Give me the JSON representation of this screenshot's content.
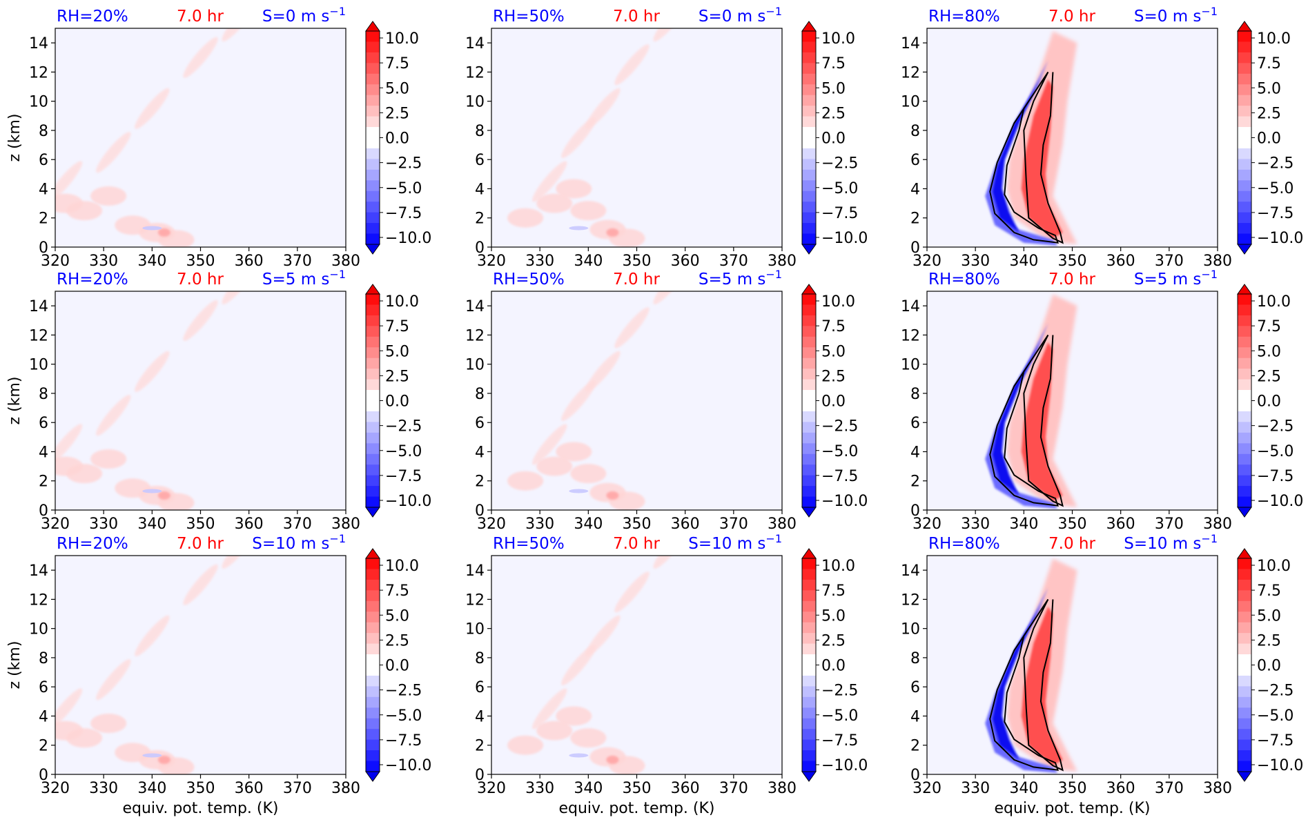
{
  "figure": {
    "colors": {
      "background": "#f4f4ff",
      "positive": "#ff0000",
      "negative": "#0000ff",
      "neutral": "#ffffff",
      "contour": "#000000",
      "rh_label": "#0000ff",
      "time_label": "#ff0000",
      "shear_label": "#0000ff"
    }
  },
  "chart_data": [
    {
      "type": "heatmap",
      "panel_row": 0,
      "panel_col": 0,
      "rh_label": "RH=20%",
      "time_label": "7.0 hr",
      "shear_label": "S=0 m s",
      "shear_exp": "−1",
      "regime": "dry",
      "xlabel": "",
      "ylabel": "z (km)",
      "xlim": [
        320,
        380
      ],
      "ylim": [
        0,
        15
      ],
      "xticks": [
        "320",
        "330",
        "340",
        "350",
        "360",
        "370",
        "380"
      ],
      "yticks": [
        "0",
        "2",
        "4",
        "6",
        "8",
        "10",
        "12",
        "14"
      ],
      "colorbar_ticks": [
        "10.0",
        "7.5",
        "5.0",
        "2.5",
        "0.0",
        "−2.5",
        "−5.0",
        "−7.5",
        "−10.0"
      ],
      "colorbar_range": [
        -10,
        10
      ],
      "colorbar_extend": "both"
    },
    {
      "type": "heatmap",
      "panel_row": 0,
      "panel_col": 1,
      "rh_label": "RH=50%",
      "time_label": "7.0 hr",
      "shear_label": "S=0 m s",
      "shear_exp": "−1",
      "regime": "moist",
      "xlabel": "",
      "ylabel": "",
      "xlim": [
        320,
        380
      ],
      "ylim": [
        0,
        15
      ],
      "xticks": [
        "320",
        "330",
        "340",
        "350",
        "360",
        "370",
        "380"
      ],
      "yticks": [
        "0",
        "2",
        "4",
        "6",
        "8",
        "10",
        "12",
        "14"
      ],
      "colorbar_ticks": [
        "10.0",
        "7.5",
        "5.0",
        "2.5",
        "0.0",
        "−2.5",
        "−5.0",
        "−7.5",
        "−10.0"
      ],
      "colorbar_range": [
        -10,
        10
      ],
      "colorbar_extend": "both"
    },
    {
      "type": "heatmap",
      "panel_row": 0,
      "panel_col": 2,
      "rh_label": "RH=80%",
      "time_label": "7.0 hr",
      "shear_label": "S=0 m s",
      "shear_exp": "−1",
      "regime": "convective",
      "xlabel": "",
      "ylabel": "",
      "xlim": [
        320,
        380
      ],
      "ylim": [
        0,
        15
      ],
      "xticks": [
        "320",
        "330",
        "340",
        "350",
        "360",
        "370",
        "380"
      ],
      "yticks": [
        "0",
        "2",
        "4",
        "6",
        "8",
        "10",
        "12",
        "14"
      ],
      "colorbar_ticks": [
        "10.0",
        "7.5",
        "5.0",
        "2.5",
        "0.0",
        "−2.5",
        "−5.0",
        "−7.5",
        "−10.0"
      ],
      "colorbar_range": [
        -10,
        10
      ],
      "colorbar_extend": "both"
    },
    {
      "type": "heatmap",
      "panel_row": 1,
      "panel_col": 0,
      "rh_label": "RH=20%",
      "time_label": "7.0 hr",
      "shear_label": "S=5 m s",
      "shear_exp": "−1",
      "regime": "dry",
      "xlabel": "",
      "ylabel": "z (km)",
      "xlim": [
        320,
        380
      ],
      "ylim": [
        0,
        15
      ],
      "xticks": [
        "320",
        "330",
        "340",
        "350",
        "360",
        "370",
        "380"
      ],
      "yticks": [
        "0",
        "2",
        "4",
        "6",
        "8",
        "10",
        "12",
        "14"
      ],
      "colorbar_ticks": [
        "10.0",
        "7.5",
        "5.0",
        "2.5",
        "0.0",
        "−2.5",
        "−5.0",
        "−7.5",
        "−10.0"
      ],
      "colorbar_range": [
        -10,
        10
      ],
      "colorbar_extend": "both"
    },
    {
      "type": "heatmap",
      "panel_row": 1,
      "panel_col": 1,
      "rh_label": "RH=50%",
      "time_label": "7.0 hr",
      "shear_label": "S=5 m s",
      "shear_exp": "−1",
      "regime": "moist",
      "xlabel": "",
      "ylabel": "",
      "xlim": [
        320,
        380
      ],
      "ylim": [
        0,
        15
      ],
      "xticks": [
        "320",
        "330",
        "340",
        "350",
        "360",
        "370",
        "380"
      ],
      "yticks": [
        "0",
        "2",
        "4",
        "6",
        "8",
        "10",
        "12",
        "14"
      ],
      "colorbar_ticks": [
        "10.0",
        "7.5",
        "5.0",
        "2.5",
        "0.0",
        "−2.5",
        "−5.0",
        "−7.5",
        "−10.0"
      ],
      "colorbar_range": [
        -10,
        10
      ],
      "colorbar_extend": "both"
    },
    {
      "type": "heatmap",
      "panel_row": 1,
      "panel_col": 2,
      "rh_label": "RH=80%",
      "time_label": "7.0 hr",
      "shear_label": "S=5 m s",
      "shear_exp": "−1",
      "regime": "convective",
      "xlabel": "",
      "ylabel": "",
      "xlim": [
        320,
        380
      ],
      "ylim": [
        0,
        15
      ],
      "xticks": [
        "320",
        "330",
        "340",
        "350",
        "360",
        "370",
        "380"
      ],
      "yticks": [
        "0",
        "2",
        "4",
        "6",
        "8",
        "10",
        "12",
        "14"
      ],
      "colorbar_ticks": [
        "10.0",
        "7.5",
        "5.0",
        "2.5",
        "0.0",
        "−2.5",
        "−5.0",
        "−7.5",
        "−10.0"
      ],
      "colorbar_range": [
        -10,
        10
      ],
      "colorbar_extend": "both"
    },
    {
      "type": "heatmap",
      "panel_row": 2,
      "panel_col": 0,
      "rh_label": "RH=20%",
      "time_label": "7.0 hr",
      "shear_label": "S=10 m s",
      "shear_exp": "−1",
      "regime": "dry",
      "xlabel": "equiv. pot. temp. (K)",
      "ylabel": "z (km)",
      "xlim": [
        320,
        380
      ],
      "ylim": [
        0,
        15
      ],
      "xticks": [
        "320",
        "330",
        "340",
        "350",
        "360",
        "370",
        "380"
      ],
      "yticks": [
        "0",
        "2",
        "4",
        "6",
        "8",
        "10",
        "12",
        "14"
      ],
      "colorbar_ticks": [
        "10.0",
        "7.5",
        "5.0",
        "2.5",
        "0.0",
        "−2.5",
        "−5.0",
        "−7.5",
        "−10.0"
      ],
      "colorbar_range": [
        -10,
        10
      ],
      "colorbar_extend": "both"
    },
    {
      "type": "heatmap",
      "panel_row": 2,
      "panel_col": 1,
      "rh_label": "RH=50%",
      "time_label": "7.0 hr",
      "shear_label": "S=10 m s",
      "shear_exp": "−1",
      "regime": "moist",
      "xlabel": "equiv. pot. temp. (K)",
      "ylabel": "",
      "xlim": [
        320,
        380
      ],
      "ylim": [
        0,
        15
      ],
      "xticks": [
        "320",
        "330",
        "340",
        "350",
        "360",
        "370",
        "380"
      ],
      "yticks": [
        "0",
        "2",
        "4",
        "6",
        "8",
        "10",
        "12",
        "14"
      ],
      "colorbar_ticks": [
        "10.0",
        "7.5",
        "5.0",
        "2.5",
        "0.0",
        "−2.5",
        "−5.0",
        "−7.5",
        "−10.0"
      ],
      "colorbar_range": [
        -10,
        10
      ],
      "colorbar_extend": "both"
    },
    {
      "type": "heatmap",
      "panel_row": 2,
      "panel_col": 2,
      "rh_label": "RH=80%",
      "time_label": "7.0 hr",
      "shear_label": "S=10 m s",
      "shear_exp": "−1",
      "regime": "convective",
      "xlabel": "equiv. pot. temp. (K)",
      "ylabel": "",
      "xlim": [
        320,
        380
      ],
      "ylim": [
        0,
        15
      ],
      "xticks": [
        "320",
        "330",
        "340",
        "350",
        "360",
        "370",
        "380"
      ],
      "yticks": [
        "0",
        "2",
        "4",
        "6",
        "8",
        "10",
        "12",
        "14"
      ],
      "colorbar_ticks": [
        "10.0",
        "7.5",
        "5.0",
        "2.5",
        "0.0",
        "−2.5",
        "−5.0",
        "−7.5",
        "−10.0"
      ],
      "colorbar_range": [
        -10,
        10
      ],
      "colorbar_extend": "both"
    }
  ]
}
